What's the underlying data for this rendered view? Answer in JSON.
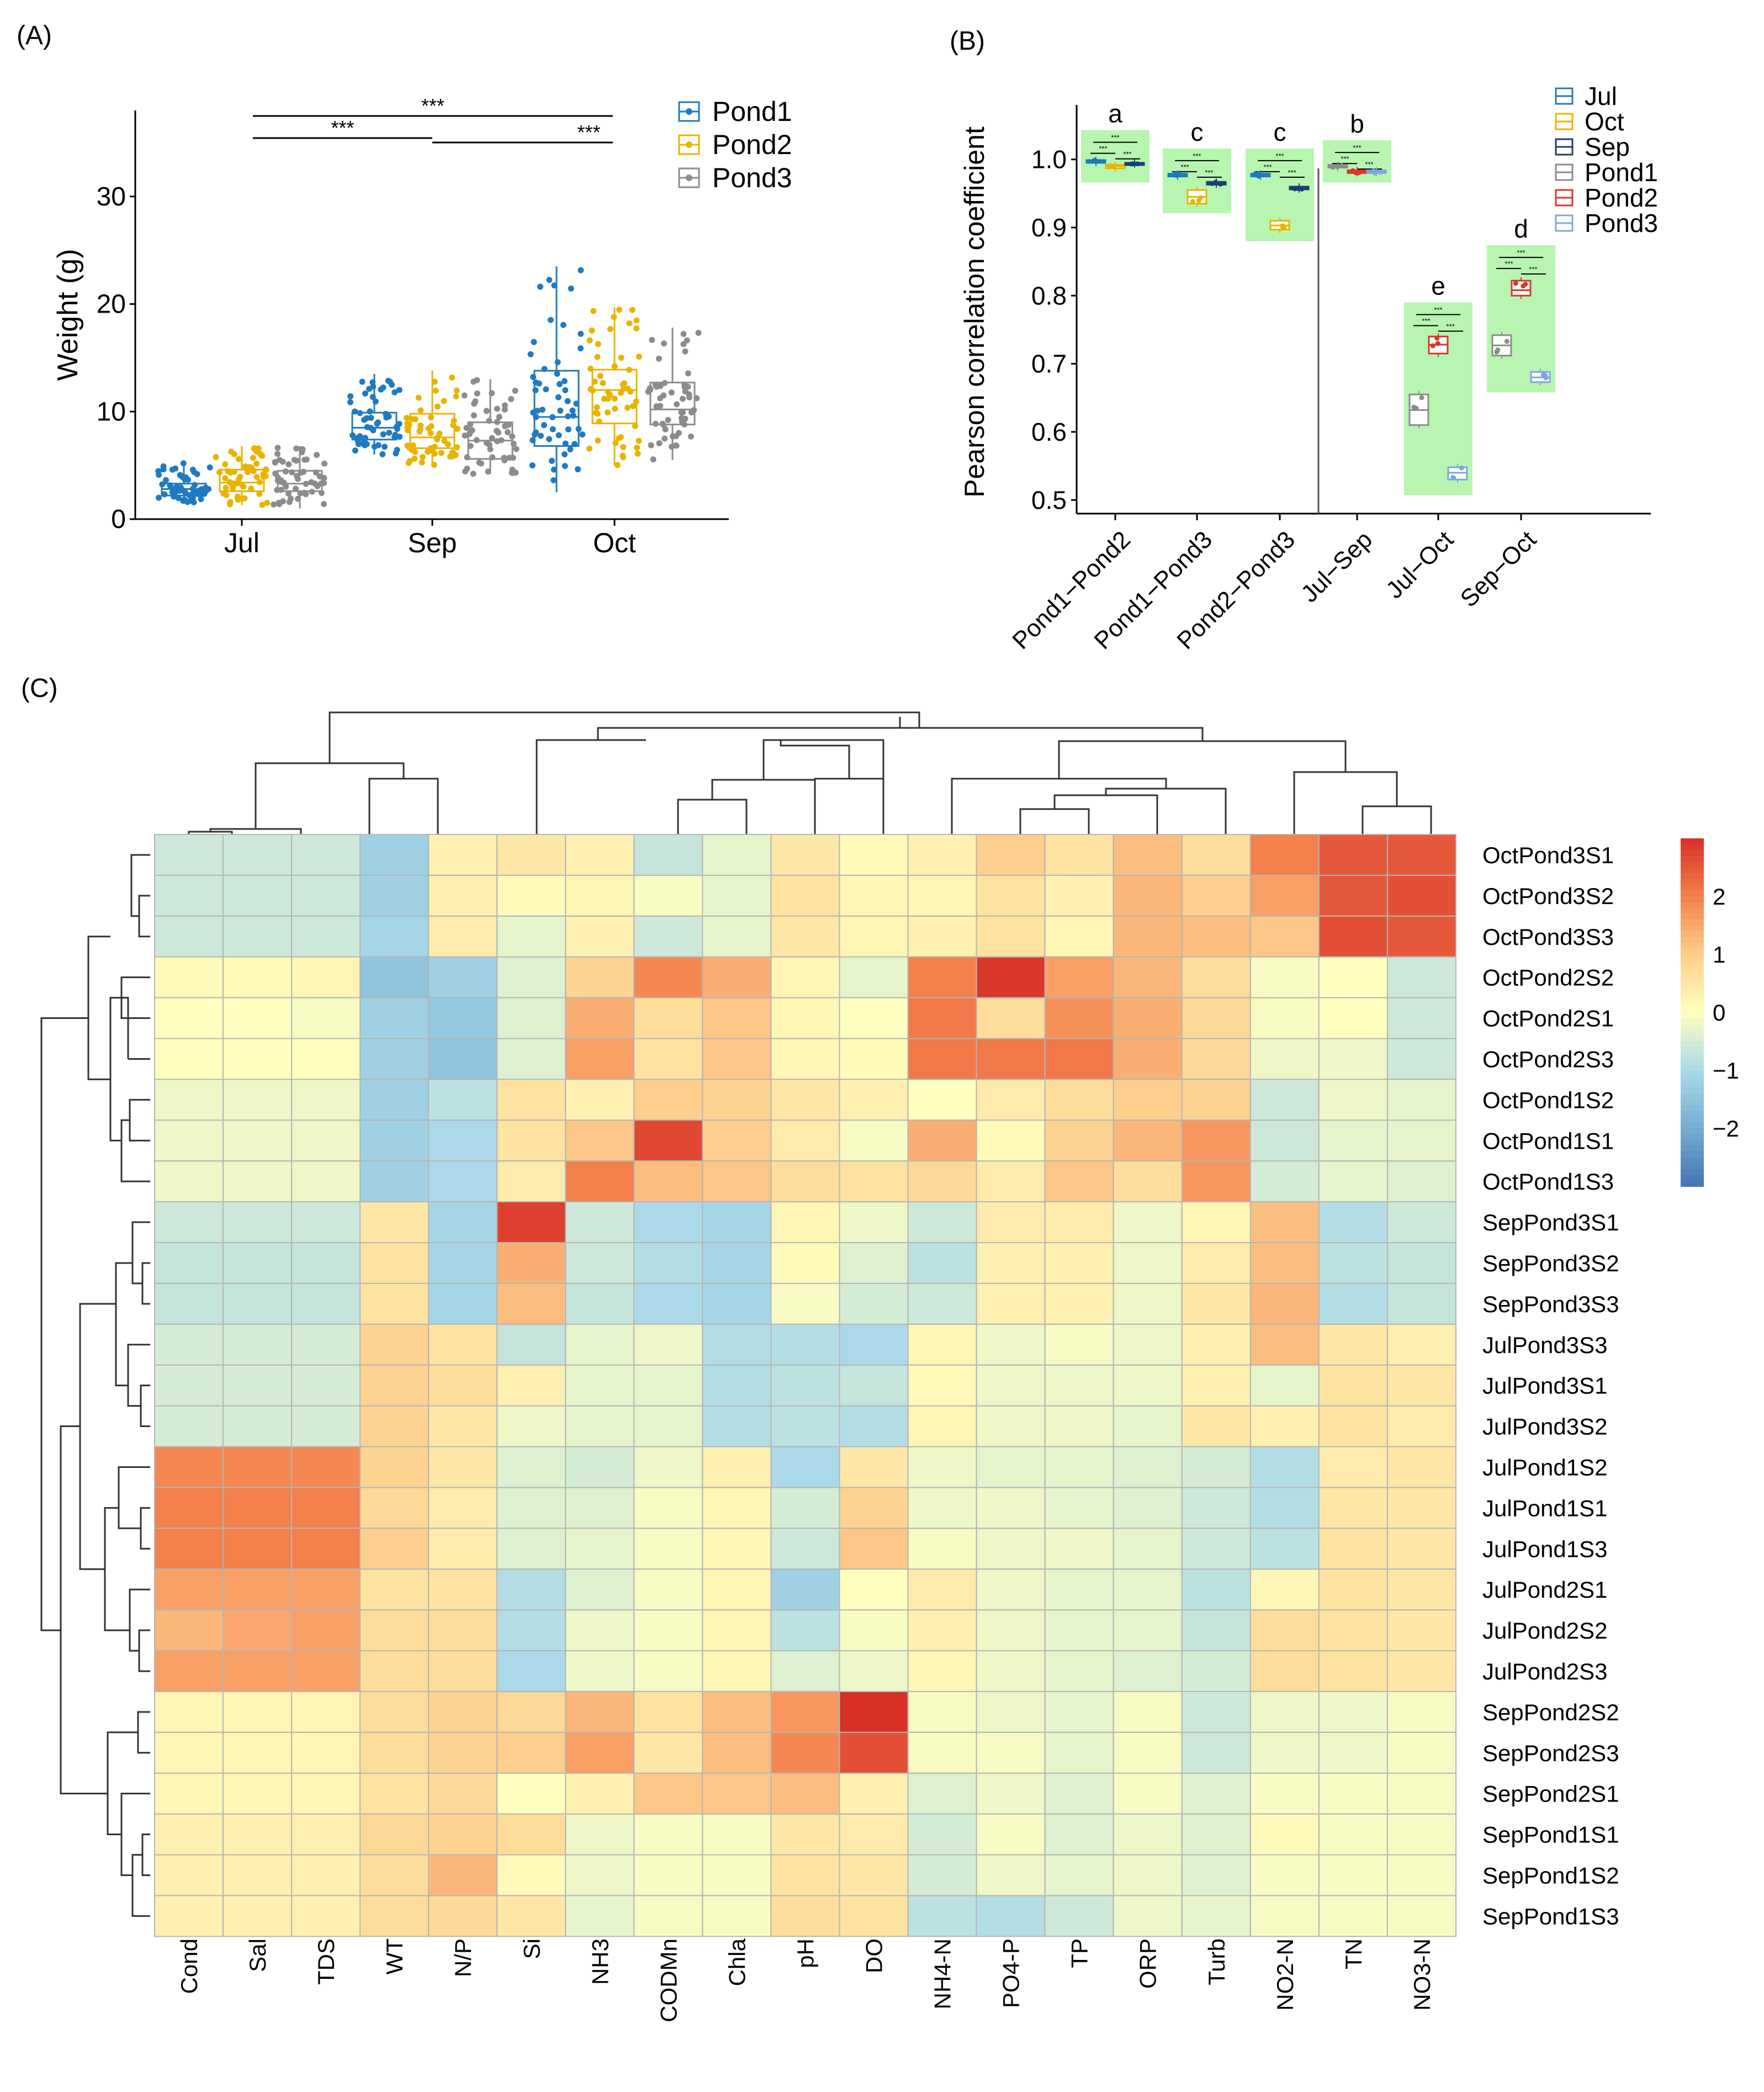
{
  "panels": {
    "a": "(A)",
    "b": "(B)",
    "c": "(C)"
  },
  "colors": {
    "pond1": "#1f7ac2",
    "pond2": "#e8b400",
    "pond3": "#8c8c8c",
    "jul": "#1f7ac2",
    "oct": "#e8b400",
    "sep": "#1b3f73",
    "b_pond1": "#8c8c8c",
    "b_pond2": "#d9372b",
    "b_pond3": "#7fa6e0",
    "sig_fill": "#b7f5b0"
  },
  "chart_data": [
    {
      "type": "box",
      "id": "A",
      "ylabel": "Weight (g)",
      "xlabel": "",
      "ylim": [
        0,
        38
      ],
      "yticks": [
        0,
        10,
        20,
        30
      ],
      "categories": [
        "Jul",
        "Sep",
        "Oct"
      ],
      "legend": [
        "Pond1",
        "Pond2",
        "Pond3"
      ],
      "legend_position": "top-right",
      "series": [
        {
          "name": "Pond1",
          "boxes": [
            {
              "min": 1.5,
              "q1": 2.2,
              "median": 2.8,
              "q3": 3.3,
              "max": 5.2
            },
            {
              "min": 6.0,
              "q1": 7.4,
              "median": 8.5,
              "q3": 9.9,
              "max": 13.5
            },
            {
              "min": 2.5,
              "q1": 6.8,
              "median": 9.5,
              "q3": 13.8,
              "max": 23.5
            }
          ]
        },
        {
          "name": "Pond2",
          "boxes": [
            {
              "min": 1.3,
              "q1": 2.6,
              "median": 3.4,
              "q3": 4.6,
              "max": 6.8
            },
            {
              "min": 5.0,
              "q1": 6.6,
              "median": 7.6,
              "q3": 9.8,
              "max": 13.8
            },
            {
              "min": 5.0,
              "q1": 8.9,
              "median": 12.0,
              "q3": 13.9,
              "max": 19.7
            }
          ]
        },
        {
          "name": "Pond3",
          "boxes": [
            {
              "min": 1.0,
              "q1": 2.6,
              "median": 3.3,
              "q3": 4.5,
              "max": 6.8
            },
            {
              "min": 4.2,
              "q1": 5.6,
              "median": 7.3,
              "q3": 9.0,
              "max": 13.0
            },
            {
              "min": 5.5,
              "q1": 8.8,
              "median": 10.2,
              "q3": 12.7,
              "max": 17.8
            }
          ]
        }
      ],
      "significance": [
        {
          "from": "Jul",
          "to": "Oct",
          "label": "***",
          "y": 37.5
        },
        {
          "from": "Jul",
          "to": "Sep",
          "label": "***",
          "y": 35.5
        },
        {
          "from": "Sep",
          "to": "Oct",
          "label": "***",
          "y": 34.8
        }
      ]
    },
    {
      "type": "box",
      "id": "B",
      "ylabel": "Pearson correlation coefficient",
      "ylim": [
        0.48,
        1.08
      ],
      "yticks": [
        0.5,
        0.6,
        0.7,
        0.8,
        0.9,
        1.0
      ],
      "ytick_labels": [
        "0.5",
        "0.6",
        "0.7",
        "0.8",
        "0.9",
        "1.0"
      ],
      "categories": [
        "Pond1−Pond2",
        "Pond1−Pond3",
        "Pond2−Pond3",
        "Jul−Sep",
        "Jul−Oct",
        "Sep−Oct"
      ],
      "group_letters": [
        "a",
        "c",
        "c",
        "b",
        "e",
        "d"
      ],
      "legend": [
        "Jul",
        "Oct",
        "Sep",
        "Pond1",
        "Pond2",
        "Pond3"
      ],
      "legend_position": "top-right",
      "groups": [
        {
          "category": "Pond1−Pond2",
          "sig_low": 0.966,
          "sig_high": 1.043,
          "boxes": [
            {
              "name": "Jul",
              "median": 0.997,
              "q1": 0.995,
              "q3": 0.999
            },
            {
              "name": "Oct",
              "median": 0.99,
              "q1": 0.987,
              "q3": 0.992
            },
            {
              "name": "Sep",
              "median": 0.994,
              "q1": 0.993,
              "q3": 0.995
            }
          ]
        },
        {
          "category": "Pond1−Pond3",
          "sig_low": 0.921,
          "sig_high": 1.016,
          "boxes": [
            {
              "name": "Jul",
              "median": 0.977,
              "q1": 0.975,
              "q3": 0.979
            },
            {
              "name": "Oct",
              "median": 0.945,
              "q1": 0.935,
              "q3": 0.955
            },
            {
              "name": "Sep",
              "median": 0.965,
              "q1": 0.963,
              "q3": 0.967
            }
          ]
        },
        {
          "category": "Pond2−Pond3",
          "sig_low": 0.88,
          "sig_high": 1.016,
          "boxes": [
            {
              "name": "Jul",
              "median": 0.977,
              "q1": 0.975,
              "q3": 0.979
            },
            {
              "name": "Oct",
              "median": 0.903,
              "q1": 0.897,
              "q3": 0.91
            },
            {
              "name": "Sep",
              "median": 0.958,
              "q1": 0.956,
              "q3": 0.96
            }
          ]
        },
        {
          "category": "Jul−Sep",
          "sig_low": 0.966,
          "sig_high": 1.028,
          "boxes": [
            {
              "name": "Pond1",
              "median": 0.99,
              "q1": 0.988,
              "q3": 0.992
            },
            {
              "name": "Pond2",
              "median": 0.982,
              "q1": 0.98,
              "q3": 0.984
            },
            {
              "name": "Pond3",
              "median": 0.982,
              "q1": 0.98,
              "q3": 0.984
            }
          ]
        },
        {
          "category": "Jul−Oct",
          "sig_low": 0.507,
          "sig_high": 0.79,
          "boxes": [
            {
              "name": "Pond1",
              "median": 0.632,
              "q1": 0.61,
              "q3": 0.655
            },
            {
              "name": "Pond2",
              "median": 0.728,
              "q1": 0.715,
              "q3": 0.74
            },
            {
              "name": "Pond3",
              "median": 0.54,
              "q1": 0.53,
              "q3": 0.548
            }
          ]
        },
        {
          "category": "Sep−Oct",
          "sig_low": 0.658,
          "sig_high": 0.874,
          "boxes": [
            {
              "name": "Pond1",
              "median": 0.727,
              "q1": 0.712,
              "q3": 0.742
            },
            {
              "name": "Pond2",
              "median": 0.808,
              "q1": 0.8,
              "q3": 0.822
            },
            {
              "name": "Pond3",
              "median": 0.68,
              "q1": 0.673,
              "q3": 0.688
            }
          ]
        }
      ],
      "sig_label": "***"
    },
    {
      "type": "heatmap",
      "id": "C",
      "columns": [
        "Cond",
        "Sal",
        "TDS",
        "WT",
        "N/P",
        "Si",
        "NH3",
        "CODMn",
        "Chla",
        "pH",
        "DO",
        "NH4-N",
        "PO4-P",
        "TP",
        "ORP",
        "Turb",
        "NO2-N",
        "TN",
        "NO3-N"
      ],
      "rows": [
        "OctPond3S1",
        "OctPond3S2",
        "OctPond3S3",
        "OctPond2S2",
        "OctPond2S1",
        "OctPond2S3",
        "OctPond1S2",
        "OctPond1S1",
        "OctPond1S3",
        "SepPond3S1",
        "SepPond3S2",
        "SepPond3S3",
        "JulPond3S3",
        "JulPond3S1",
        "JulPond3S2",
        "JulPond1S2",
        "JulPond1S1",
        "JulPond1S3",
        "JulPond2S1",
        "JulPond2S2",
        "JulPond2S3",
        "SepPond2S2",
        "SepPond2S3",
        "SepPond2S1",
        "SepPond1S1",
        "SepPond1S2",
        "SepPond1S3"
      ],
      "values": [
        [
          -0.6,
          -0.6,
          -0.6,
          -1.2,
          0.3,
          0.5,
          0.3,
          -0.7,
          -0.3,
          0.5,
          0.1,
          0.3,
          1.0,
          0.6,
          1.2,
          0.7,
          2.0,
          2.5,
          2.5
        ],
        [
          -0.6,
          -0.6,
          -0.6,
          -1.2,
          0.3,
          0.1,
          0.2,
          -0.1,
          -0.3,
          0.6,
          0.2,
          0.2,
          0.6,
          0.3,
          1.3,
          1.0,
          1.6,
          2.5,
          2.6
        ],
        [
          -0.6,
          -0.6,
          -0.6,
          -1.1,
          0.4,
          -0.3,
          0.3,
          -0.6,
          -0.3,
          0.5,
          0.2,
          0.3,
          0.6,
          0.2,
          1.3,
          1.2,
          1.1,
          2.6,
          2.5
        ],
        [
          0.1,
          0.1,
          0.2,
          -1.5,
          -1.2,
          -0.4,
          0.9,
          1.9,
          1.4,
          0.2,
          -0.3,
          2.0,
          2.9,
          1.6,
          1.3,
          0.7,
          -0.1,
          0.0,
          -0.6
        ],
        [
          0.0,
          0.0,
          -0.1,
          -1.2,
          -1.4,
          -0.4,
          1.4,
          0.7,
          1.1,
          0.2,
          0.0,
          2.1,
          0.7,
          1.8,
          1.4,
          0.8,
          -0.1,
          0.0,
          -0.6
        ],
        [
          0.0,
          0.0,
          0.0,
          -1.2,
          -1.5,
          -0.4,
          1.6,
          0.6,
          1.1,
          0.2,
          0.1,
          2.1,
          2.1,
          2.1,
          1.4,
          0.8,
          -0.2,
          -0.2,
          -0.6
        ],
        [
          -0.2,
          -0.2,
          -0.2,
          -1.2,
          -0.8,
          0.6,
          0.3,
          1.0,
          0.9,
          0.5,
          0.3,
          0.0,
          0.4,
          0.7,
          1.0,
          0.9,
          -0.6,
          -0.2,
          -0.3
        ],
        [
          -0.2,
          -0.2,
          -0.2,
          -1.2,
          -1.0,
          0.6,
          1.1,
          2.7,
          1.0,
          0.4,
          -0.1,
          1.4,
          0.1,
          0.9,
          1.3,
          1.7,
          -0.6,
          -0.3,
          -0.3
        ],
        [
          -0.2,
          -0.2,
          -0.2,
          -1.2,
          -1.0,
          0.4,
          2.0,
          1.2,
          1.1,
          0.7,
          0.6,
          0.8,
          0.4,
          1.1,
          0.7,
          1.7,
          -0.5,
          -0.3,
          -0.4
        ],
        [
          -0.6,
          -0.6,
          -0.6,
          0.5,
          -1.1,
          2.8,
          -0.6,
          -1.0,
          -1.1,
          0.2,
          -0.2,
          -0.6,
          0.4,
          0.4,
          -0.2,
          0.2,
          1.2,
          -0.9,
          -0.6
        ],
        [
          -0.7,
          -0.7,
          -0.7,
          0.6,
          -1.1,
          1.4,
          -0.6,
          -0.9,
          -1.1,
          0.1,
          -0.4,
          -0.8,
          0.3,
          0.3,
          -0.2,
          0.4,
          1.2,
          -0.8,
          -0.7
        ],
        [
          -0.7,
          -0.7,
          -0.7,
          0.6,
          -1.1,
          1.2,
          -0.7,
          -1.0,
          -1.1,
          -0.1,
          -0.5,
          -0.6,
          0.3,
          0.3,
          -0.2,
          0.5,
          1.3,
          -0.9,
          -0.7
        ],
        [
          -0.5,
          -0.5,
          -0.5,
          0.9,
          0.6,
          -0.7,
          -0.3,
          -0.2,
          -0.9,
          -0.9,
          -1.0,
          0.2,
          -0.2,
          -0.1,
          -0.2,
          0.3,
          1.2,
          0.5,
          0.3
        ],
        [
          -0.5,
          -0.5,
          -0.5,
          0.9,
          0.7,
          0.3,
          -0.3,
          -0.3,
          -0.9,
          -0.8,
          -0.7,
          0.1,
          -0.2,
          -0.2,
          -0.2,
          0.3,
          -0.3,
          0.6,
          0.5
        ],
        [
          -0.5,
          -0.5,
          -0.5,
          0.9,
          0.5,
          -0.2,
          -0.3,
          -0.3,
          -0.9,
          -0.8,
          -0.9,
          0.2,
          -0.2,
          -0.2,
          -0.3,
          0.5,
          0.3,
          0.6,
          0.4
        ],
        [
          1.9,
          1.9,
          1.9,
          0.9,
          0.5,
          -0.4,
          -0.5,
          -0.2,
          0.3,
          -1.0,
          0.5,
          -0.2,
          -0.3,
          -0.3,
          -0.4,
          -0.5,
          -0.9,
          0.4,
          0.5
        ],
        [
          2.0,
          2.0,
          2.0,
          0.8,
          0.4,
          -0.4,
          -0.4,
          -0.1,
          0.2,
          -0.5,
          0.9,
          -0.2,
          -0.2,
          -0.3,
          -0.4,
          -0.6,
          -0.9,
          0.5,
          0.5
        ],
        [
          2.0,
          2.0,
          2.0,
          1.0,
          0.4,
          -0.4,
          -0.3,
          -0.1,
          0.2,
          -0.6,
          1.1,
          -0.1,
          -0.2,
          -0.2,
          -0.3,
          -0.6,
          -0.8,
          0.6,
          0.5
        ],
        [
          1.6,
          1.6,
          1.6,
          0.6,
          0.6,
          -0.9,
          -0.4,
          -0.1,
          0.2,
          -1.2,
          0.0,
          0.4,
          -0.2,
          -0.3,
          -0.3,
          -0.8,
          0.2,
          0.6,
          0.5
        ],
        [
          1.3,
          1.5,
          1.6,
          0.7,
          0.7,
          -0.9,
          -0.2,
          -0.1,
          0.2,
          -0.8,
          -0.1,
          0.3,
          -0.2,
          -0.3,
          -0.3,
          -0.7,
          0.7,
          0.6,
          0.5
        ],
        [
          1.6,
          1.6,
          1.6,
          0.7,
          0.7,
          -1.0,
          -0.2,
          -0.1,
          0.2,
          -0.4,
          -0.2,
          0.2,
          -0.2,
          -0.3,
          -0.4,
          -0.5,
          0.7,
          0.6,
          0.5
        ],
        [
          0.2,
          0.2,
          0.2,
          0.7,
          0.9,
          0.8,
          1.3,
          0.6,
          1.2,
          1.7,
          3.0,
          -0.1,
          -0.2,
          -0.3,
          -0.1,
          -0.6,
          -0.2,
          -0.2,
          -0.1
        ],
        [
          0.2,
          0.2,
          0.2,
          0.7,
          0.9,
          1.0,
          1.6,
          0.5,
          1.2,
          1.9,
          2.6,
          -0.1,
          -0.1,
          -0.3,
          -0.1,
          -0.6,
          -0.2,
          -0.2,
          -0.1
        ],
        [
          0.2,
          0.2,
          0.2,
          0.6,
          0.8,
          0.0,
          0.3,
          1.1,
          1.1,
          1.2,
          0.3,
          -0.4,
          -0.2,
          -0.4,
          -0.1,
          -0.4,
          -0.1,
          -0.1,
          -0.1
        ],
        [
          0.3,
          0.3,
          0.3,
          0.8,
          0.9,
          0.7,
          -0.2,
          -0.1,
          -0.1,
          0.5,
          0.4,
          -0.5,
          -0.1,
          -0.4,
          -0.2,
          -0.4,
          0.1,
          -0.1,
          -0.1
        ],
        [
          0.3,
          0.3,
          0.3,
          0.7,
          1.3,
          0.1,
          -0.2,
          -0.1,
          -0.1,
          0.6,
          0.5,
          -0.5,
          -0.2,
          -0.3,
          -0.2,
          -0.4,
          -0.1,
          -0.1,
          -0.1
        ],
        [
          0.3,
          0.3,
          0.3,
          0.7,
          0.8,
          0.5,
          -0.3,
          -0.1,
          -0.1,
          0.7,
          0.6,
          -0.8,
          -0.9,
          -0.6,
          -0.2,
          -0.3,
          -0.1,
          -0.1,
          -0.1
        ]
      ],
      "colorbar": {
        "min": -3,
        "max": 3,
        "ticks": [
          2,
          1,
          0,
          -1,
          -2
        ],
        "tick_labels": [
          "2",
          "1",
          "0",
          "−1",
          "−2"
        ]
      },
      "dendrogram": "hierarchical clustering of rows and columns"
    }
  ]
}
